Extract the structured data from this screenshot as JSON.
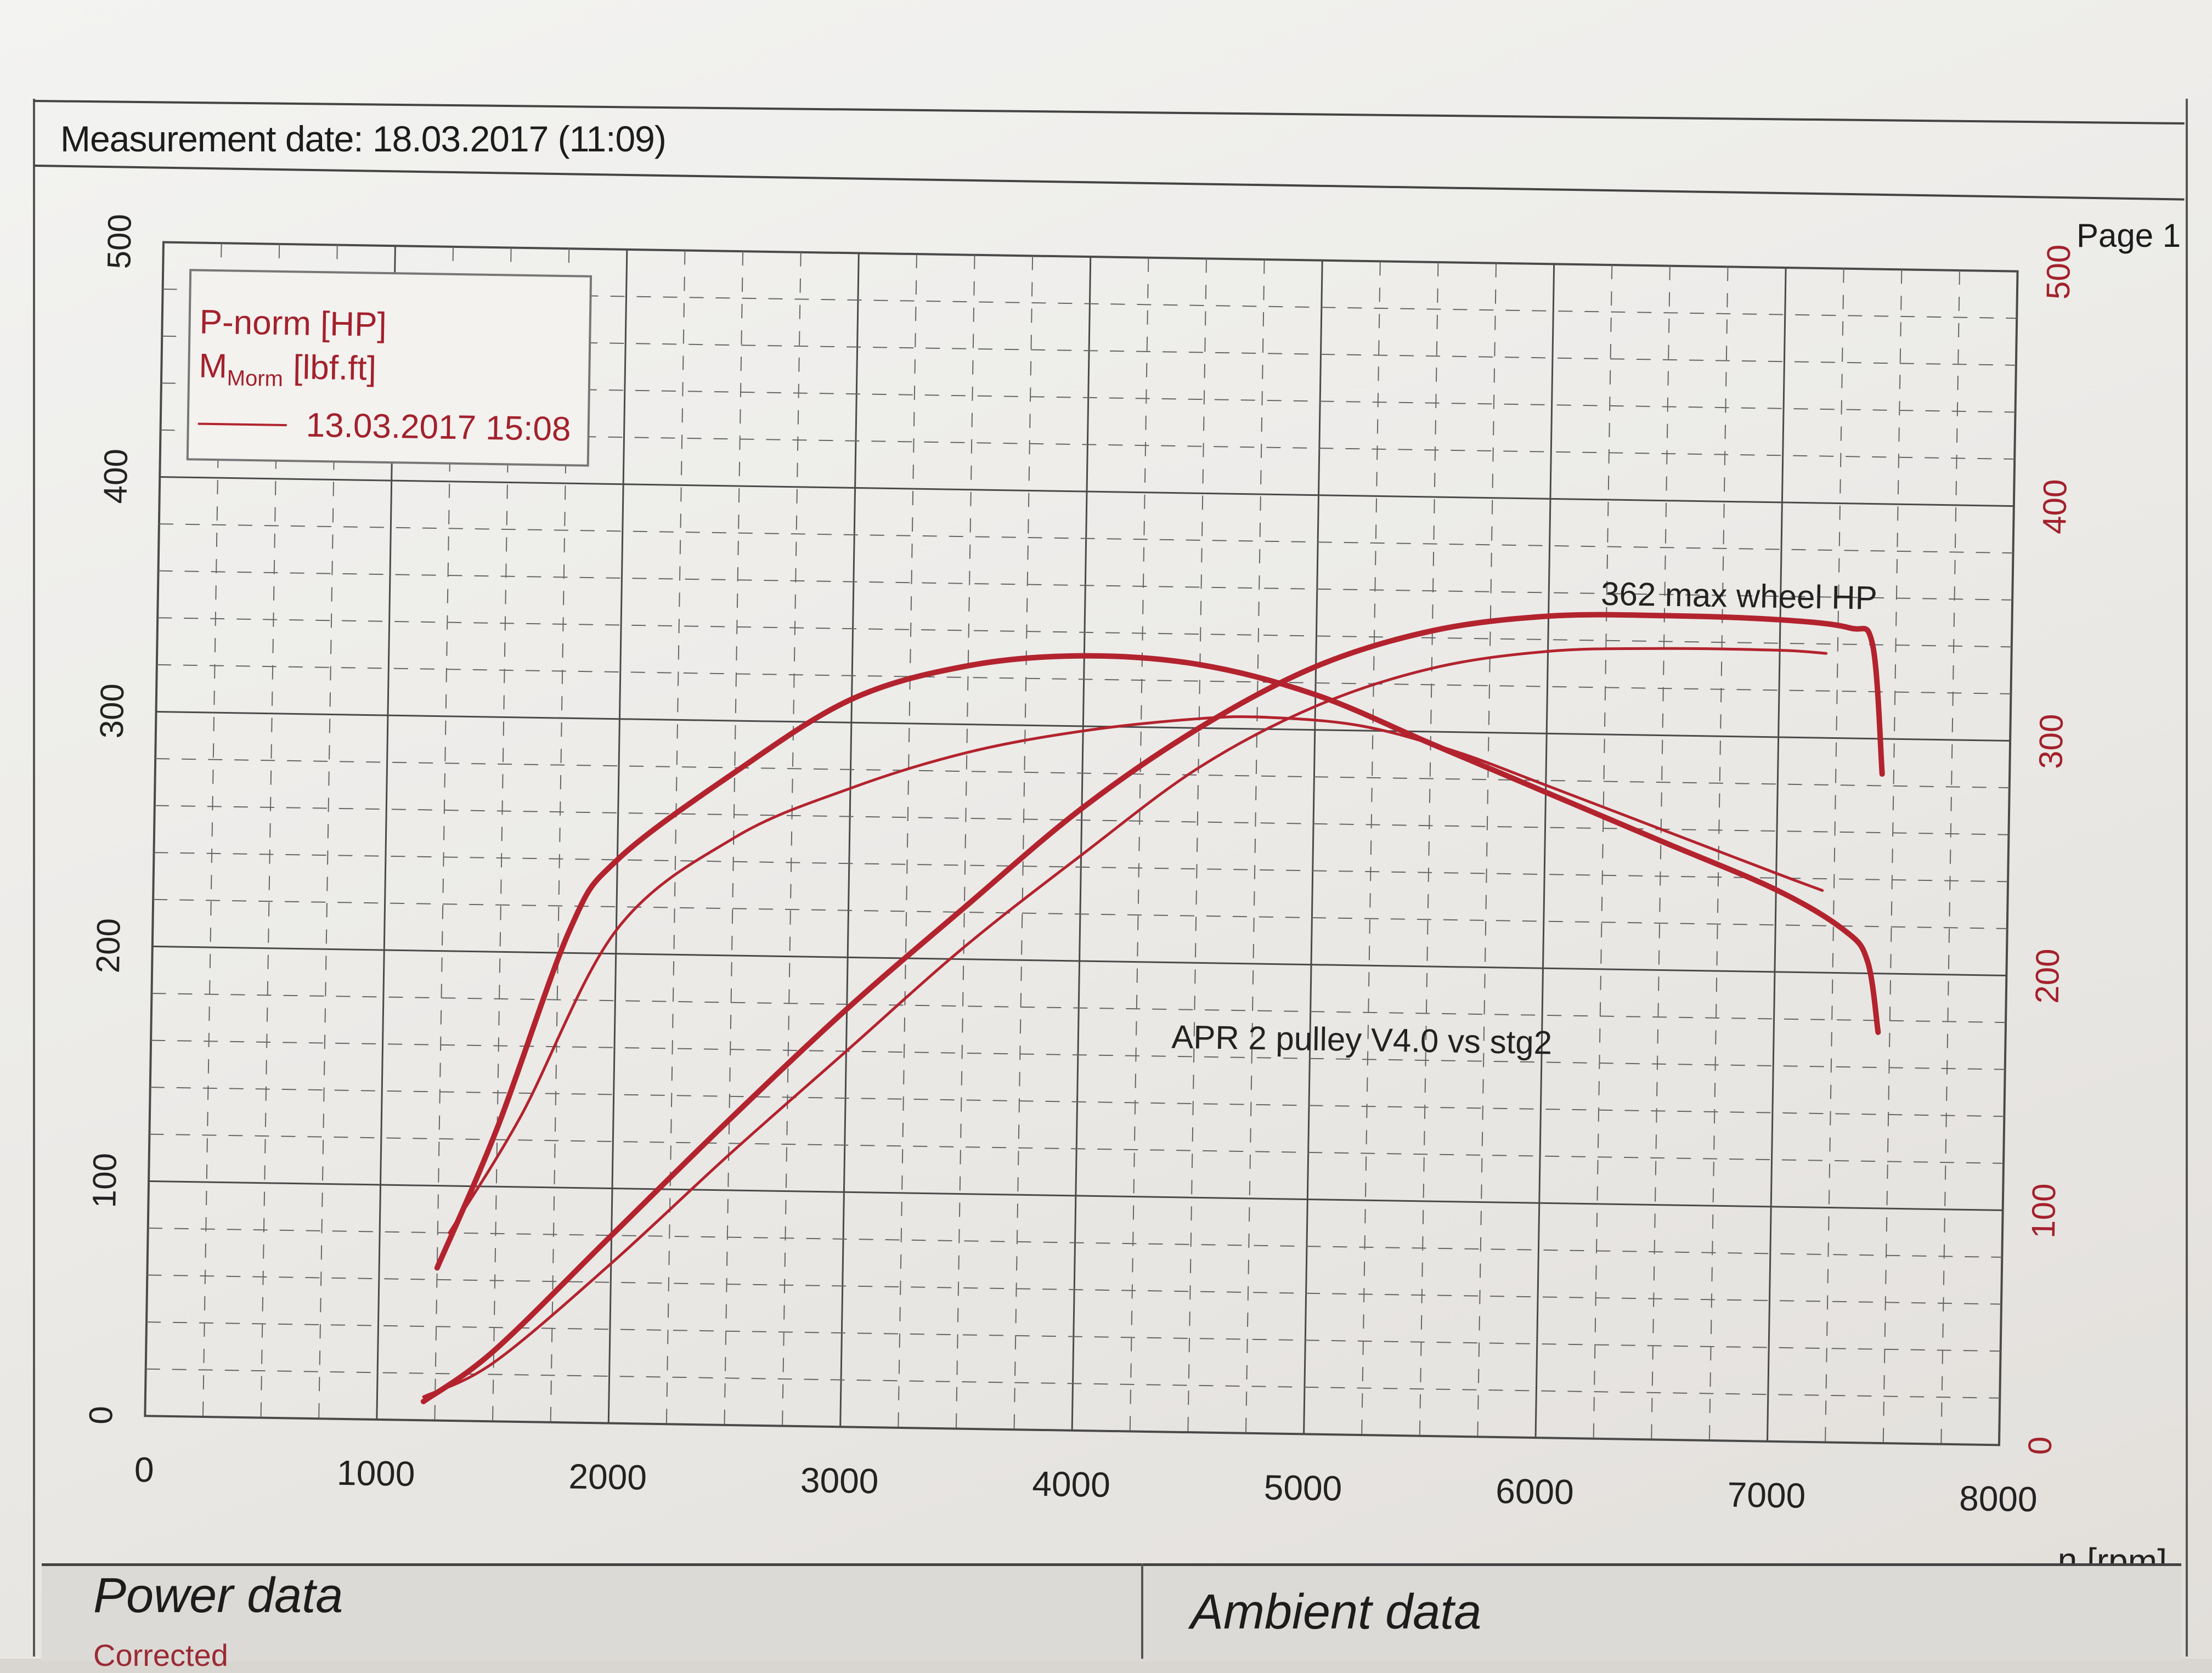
{
  "header": {
    "measurement_date": "Measurement date: 18.03.2017 (11:09)",
    "page": "Page 1"
  },
  "footer": {
    "power_data": "Power data",
    "ambient_data": "Ambient data",
    "corrected_label": "Corrected"
  },
  "colors": {
    "curve": "#b3232e",
    "axis_red": "#a3212c",
    "grid": "#4a4a4a"
  },
  "chart_data": {
    "type": "line",
    "xlabel": "n [rpm]",
    "xlim": [
      0,
      8000
    ],
    "x_ticks": [
      "0",
      "1000",
      "2000",
      "3000",
      "4000",
      "5000",
      "6000",
      "7000",
      "8000"
    ],
    "left_axis": {
      "ylim": [
        0,
        500
      ],
      "ticks": [
        "0",
        "100",
        "200",
        "300",
        "400",
        "500"
      ]
    },
    "right_axis": {
      "ylim": [
        0,
        500
      ],
      "ticks": [
        "0",
        "100",
        "200",
        "300",
        "400",
        "500"
      ]
    },
    "grid": true,
    "legend": {
      "position": "top-left",
      "entries": [
        "P-norm [HP]",
        "M",
        "[lbf.ft]"
      ],
      "subscript": "Morm",
      "run_label": "13.03.2017 15:08"
    },
    "annotations": [
      "362 max wheel HP",
      "APR 2 pulley V4.0  vs stg2"
    ],
    "series": [
      {
        "name": "P-norm [HP]",
        "x": [
          1200,
          1500,
          2000,
          2500,
          3000,
          3500,
          4000,
          4500,
          5000,
          5500,
          6000,
          6500,
          7000,
          7300,
          7400,
          7450
        ],
        "values": [
          8,
          30,
          80,
          130,
          178,
          222,
          265,
          300,
          327,
          343,
          350,
          351,
          350,
          347,
          340,
          285
        ]
      },
      {
        "name": "M [lbf.ft]",
        "x": [
          1250,
          1500,
          1800,
          2000,
          2500,
          3000,
          3500,
          4000,
          4500,
          5000,
          5500,
          6000,
          6500,
          7000,
          7300,
          7400,
          7450
        ],
        "values": [
          65,
          125,
          210,
          240,
          278,
          310,
          325,
          330,
          327,
          315,
          295,
          275,
          255,
          235,
          218,
          205,
          175
        ]
      },
      {
        "x": [
          1200,
          1500,
          2000,
          2500,
          3000,
          3500,
          4000,
          4500,
          5000,
          5500,
          6000,
          6500,
          7000,
          7200
        ],
        "values": [
          10,
          25,
          68,
          115,
          160,
          205,
          245,
          283,
          310,
          327,
          335,
          337,
          337,
          336
        ]
      },
      {
        "x": [
          1300,
          1600,
          2000,
          2500,
          3000,
          3500,
          4000,
          4500,
          4800,
          5200,
          5600,
          6000,
          6500,
          7000,
          7200
        ],
        "values": [
          80,
          130,
          210,
          250,
          272,
          288,
          298,
          304,
          305,
          302,
          292,
          278,
          260,
          242,
          235
        ]
      }
    ]
  }
}
